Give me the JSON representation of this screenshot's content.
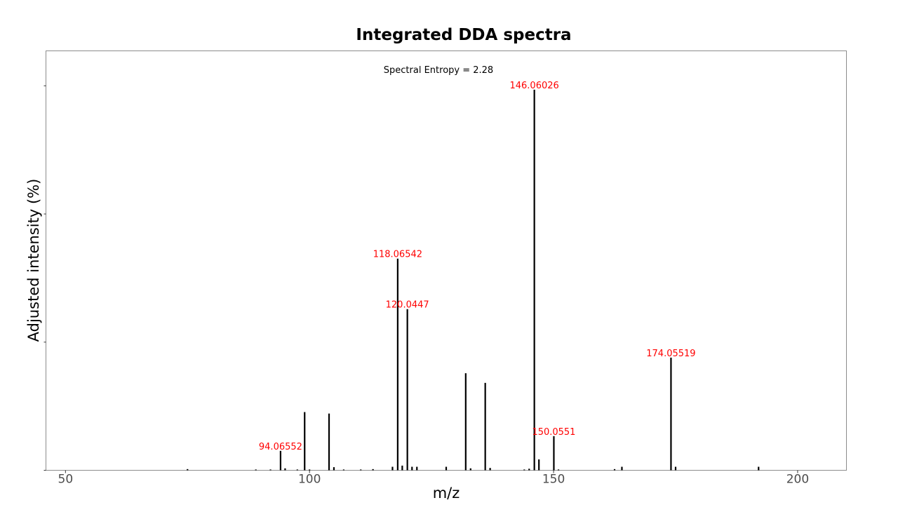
{
  "chart_data": {
    "type": "bar",
    "title": "Integrated DDA spectra",
    "xlabel": "m/z",
    "ylabel": "Adjusted intensity (%)",
    "annotation": "Spectral Entropy = 2.28",
    "xlim": [
      46,
      210
    ],
    "ylim": [
      0,
      108
    ],
    "xticks": [
      50,
      100,
      150,
      200
    ],
    "yticks": [
      0,
      33,
      66,
      99
    ],
    "grid": false,
    "legend": "none",
    "bar_color": "#000000",
    "label_color": "#ff0000",
    "peaks": [
      {
        "mz": 75.0,
        "intensity": 0.3
      },
      {
        "mz": 89.0,
        "intensity": 0.2
      },
      {
        "mz": 92.0,
        "intensity": 0.2
      },
      {
        "mz": 94.06552,
        "intensity": 5.0,
        "label": "94.06552"
      },
      {
        "mz": 95.0,
        "intensity": 0.5
      },
      {
        "mz": 97.5,
        "intensity": 0.2
      },
      {
        "mz": 99.0,
        "intensity": 15.0
      },
      {
        "mz": 100.0,
        "intensity": 0.2
      },
      {
        "mz": 104.0,
        "intensity": 14.6
      },
      {
        "mz": 105.0,
        "intensity": 0.8
      },
      {
        "mz": 107.0,
        "intensity": 0.2
      },
      {
        "mz": 110.5,
        "intensity": 0.2
      },
      {
        "mz": 113.0,
        "intensity": 0.3
      },
      {
        "mz": 117.0,
        "intensity": 0.9
      },
      {
        "mz": 118.06542,
        "intensity": 54.5,
        "label": "118.06542"
      },
      {
        "mz": 119.0,
        "intensity": 1.2
      },
      {
        "mz": 120.0447,
        "intensity": 41.5,
        "label": "120.0447"
      },
      {
        "mz": 121.0,
        "intensity": 0.9
      },
      {
        "mz": 122.0,
        "intensity": 0.9
      },
      {
        "mz": 128.0,
        "intensity": 0.9
      },
      {
        "mz": 132.0,
        "intensity": 25.0
      },
      {
        "mz": 133.0,
        "intensity": 0.5
      },
      {
        "mz": 136.0,
        "intensity": 22.5
      },
      {
        "mz": 137.0,
        "intensity": 0.6
      },
      {
        "mz": 144.0,
        "intensity": 0.2
      },
      {
        "mz": 145.0,
        "intensity": 0.4
      },
      {
        "mz": 146.06026,
        "intensity": 98.0,
        "label": "146.06026"
      },
      {
        "mz": 147.0,
        "intensity": 2.8
      },
      {
        "mz": 150.0551,
        "intensity": 8.8,
        "label": "150.0551"
      },
      {
        "mz": 151.0,
        "intensity": 0.2
      },
      {
        "mz": 162.5,
        "intensity": 0.3
      },
      {
        "mz": 164.0,
        "intensity": 0.9
      },
      {
        "mz": 174.05519,
        "intensity": 29.0,
        "label": "174.05519"
      },
      {
        "mz": 175.0,
        "intensity": 0.9
      },
      {
        "mz": 192.0,
        "intensity": 0.9
      }
    ]
  }
}
